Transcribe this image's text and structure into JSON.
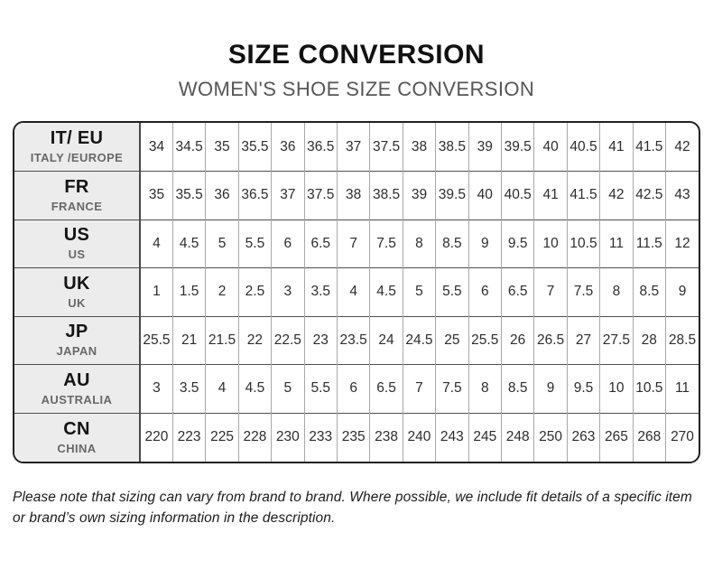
{
  "header": {
    "title": "SIZE CONVERSION",
    "subtitle": "WOMEN'S SHOE SIZE CONVERSION"
  },
  "table": {
    "rows": [
      {
        "code": "IT/ EU",
        "region": "ITALY /EUROPE",
        "sizes": [
          "34",
          "34.5",
          "35",
          "35.5",
          "36",
          "36.5",
          "37",
          "37.5",
          "38",
          "38.5",
          "39",
          "39.5",
          "40",
          "40.5",
          "41",
          "41.5",
          "42"
        ]
      },
      {
        "code": "FR",
        "region": "FRANCE",
        "sizes": [
          "35",
          "35.5",
          "36",
          "36.5",
          "37",
          "37.5",
          "38",
          "38.5",
          "39",
          "39.5",
          "40",
          "40.5",
          "41",
          "41.5",
          "42",
          "42.5",
          "43"
        ]
      },
      {
        "code": "US",
        "region": "US",
        "sizes": [
          "4",
          "4.5",
          "5",
          "5.5",
          "6",
          "6.5",
          "7",
          "7.5",
          "8",
          "8.5",
          "9",
          "9.5",
          "10",
          "10.5",
          "11",
          "11.5",
          "12"
        ]
      },
      {
        "code": "UK",
        "region": "UK",
        "sizes": [
          "1",
          "1.5",
          "2",
          "2.5",
          "3",
          "3.5",
          "4",
          "4.5",
          "5",
          "5.5",
          "6",
          "6.5",
          "7",
          "7.5",
          "8",
          "8.5",
          "9"
        ]
      },
      {
        "code": "JP",
        "region": "JAPAN",
        "sizes": [
          "25.5",
          "21",
          "21.5",
          "22",
          "22.5",
          "23",
          "23.5",
          "24",
          "24.5",
          "25",
          "25.5",
          "26",
          "26.5",
          "27",
          "27.5",
          "28",
          "28.5"
        ]
      },
      {
        "code": "AU",
        "region": "AUSTRALIA",
        "sizes": [
          "3",
          "3.5",
          "4",
          "4.5",
          "5",
          "5.5",
          "6",
          "6.5",
          "7",
          "7.5",
          "8",
          "8.5",
          "9",
          "9.5",
          "10",
          "10.5",
          "11"
        ]
      },
      {
        "code": "CN",
        "region": "CHINA",
        "sizes": [
          "220",
          "223",
          "225",
          "228",
          "230",
          "233",
          "235",
          "238",
          "240",
          "243",
          "245",
          "248",
          "250",
          "263",
          "265",
          "268",
          "270"
        ]
      }
    ]
  },
  "footer": {
    "note": "Please note that sizing can vary from brand to brand. Where possible, we include fit details of a specific item or brand’s own sizing information in the description."
  }
}
